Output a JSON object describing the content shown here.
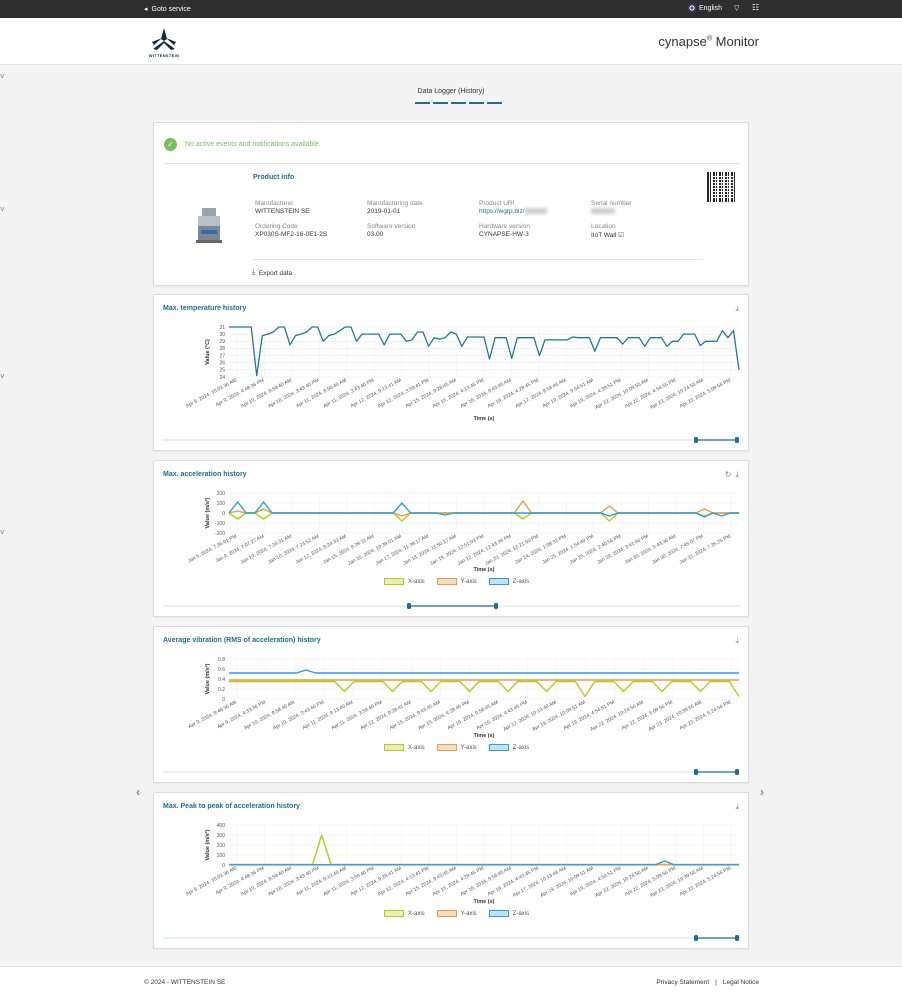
{
  "topbar": {
    "goto_service": "Goto service",
    "language": "English"
  },
  "header": {
    "brand": "WITTENSTEIN",
    "app_title": "cynapse",
    "app_title_suffix": "Monitor",
    "registered": "®"
  },
  "page": {
    "title": "Data Logger (History)"
  },
  "notification": {
    "text": "No active events and notifications available."
  },
  "product": {
    "section_title": "Product info",
    "manufacturer_label": "Manufacturer",
    "manufacturer": "WITTENSTEIN SE",
    "manufacturing_date_label": "Manufacturing date",
    "manufacturing_date": "2019-01-01",
    "product_uri_label": "Product URI",
    "product_uri": "https://wgrp.biz/",
    "serial_number_label": "Serial number",
    "ordering_code_label": "Ordering Code",
    "ordering_code": "XP030S-MF2-16-0E1-2S",
    "software_version_label": "Software version",
    "software_version": "03.00",
    "hardware_version_label": "Hardware version",
    "hardware_version": "CYNAPSE-HW-3",
    "location_label": "Location",
    "location": "IIoT Wall",
    "export_label": "Export data"
  },
  "legend": {
    "x": "X-axis",
    "y": "Y-axis",
    "z": "Z-axis"
  },
  "colors": {
    "accent": "#1f6e8c",
    "x_axis": "#b5cc18",
    "y_axis": "#e0a04a",
    "z_axis": "#2d9fd4",
    "temp": "#1f7a96"
  },
  "chart_data": [
    {
      "type": "line",
      "title": "Max. temperature history",
      "ylabel": "Value (°C)",
      "xlabel": "Time (s)",
      "ylim": [
        24,
        31
      ],
      "yticks": [
        24,
        25,
        26,
        27,
        28,
        29,
        30,
        31
      ],
      "xticklabels": [
        "Apr 9, 2024, 10:03:36 AM",
        "Apr 9, 2024, 4:48:36 PM",
        "Apr 10, 2024, 8:58:40 AM",
        "Apr 10, 2024, 3:43:40 PM",
        "Apr 11, 2024, 8:58:40 AM",
        "Apr 11, 2024, 3:43:40 PM",
        "Apr 12, 2024, 9:13:41 AM",
        "Apr 12, 2024, 3:58:41 PM",
        "Apr 15, 2024, 9:28:45 AM",
        "Apr 15, 2024, 4:13:45 PM",
        "Apr 16, 2024, 9:43:45 AM",
        "Apr 16, 2024, 4:28:45 PM",
        "Apr 17, 2024, 9:58:46 AM",
        "Apr 19, 2024, 9:54:51 AM",
        "Apr 19, 2024, 4:39:51 PM",
        "Apr 22, 2024, 10:09:55 AM",
        "Apr 22, 2024, 4:54:55 PM",
        "Apr 23, 2024, 10:24:56 AM",
        "Apr 23, 2024, 5:09:56 PM"
      ],
      "series": [
        {
          "values": [
            31,
            31,
            31,
            31,
            31,
            24.2,
            29.8,
            30,
            30.3,
            31,
            31,
            28.5,
            29.8,
            30,
            30.3,
            31,
            31,
            29,
            29.8,
            30,
            30.5,
            31,
            31,
            29,
            30,
            30,
            30,
            30,
            28.5,
            30,
            30,
            30,
            29,
            29.2,
            30.3,
            30.3,
            28.3,
            29.5,
            29.3,
            29.5,
            30.3,
            30,
            28.3,
            29.6,
            29.6,
            29.6,
            29.6,
            26.5,
            29.5,
            29.5,
            29.5,
            26.6,
            29.5,
            29.5,
            29.5,
            29.5,
            27,
            29.2,
            29.2,
            29.2,
            29.2,
            29.2,
            29.6,
            29.5,
            29.5,
            29.5,
            27.6,
            29.5,
            29.5,
            29.5,
            29.5,
            28.6,
            29.5,
            29.5,
            29.5,
            28.3,
            29.5,
            29.5,
            29.5,
            28.3,
            29,
            29,
            30,
            30,
            30,
            28.4,
            29,
            29,
            29,
            30.5,
            29.5,
            30.5,
            25
          ]
        }
      ]
    },
    {
      "type": "line",
      "title": "Max. acceleration history",
      "ylabel": "Value (m/s²)",
      "xlabel": "Time (s)",
      "ylim": [
        -200,
        200
      ],
      "yticks": [
        -200,
        -100,
        0,
        100,
        200
      ],
      "xticklabels": [
        "Jan 5, 2024, 7:36:01 PM",
        "Jan 9, 2024, 7:07:27 AM",
        "Jan 10, 2024, 7:24:31 AM",
        "Jan 10, 2024, 7:23:52 AM",
        "Jan 12, 2024, 8:24:33 AM",
        "Jan 15, 2024, 9:39:31 AM",
        "Jan 16, 2024, 10:39:01 AM",
        "Jan 17, 2024, 11:39:17 AM",
        "Jan 18, 2024, 11:50:17 AM",
        "Jan 19, 2024, 12:51:03 PM",
        "Jan 22, 2024, 12:43:39 PM",
        "Jan 23, 2024, 12:21:50 PM",
        "Jan 24, 2024, 1:08:31 PM",
        "Jan 25, 2024, 1:54:40 PM",
        "Jan 26, 2024, 2:40:56 PM",
        "Jan 29, 2024, 3:41:46 PM",
        "Jan 30, 2024, 5:43:36 AM",
        "Jan 30, 2024, 7:45:07 PM",
        "Jan 31, 2024, 7:35:25 PM"
      ],
      "series": [
        {
          "name": "X-axis",
          "values": [
            0,
            -60,
            0,
            0,
            -60,
            0,
            0,
            0,
            0,
            0,
            0,
            0,
            0,
            0,
            0,
            0,
            0,
            0,
            0,
            0,
            -80,
            0,
            0,
            0,
            0,
            0,
            0,
            0,
            0,
            0,
            0,
            0,
            0,
            0,
            -60,
            0,
            0,
            0,
            0,
            0,
            0,
            0,
            0,
            0,
            -80,
            0,
            0,
            0,
            0,
            0,
            0,
            0,
            0,
            0,
            0,
            -30,
            0,
            0,
            0,
            0
          ]
        },
        {
          "name": "Y-axis",
          "values": [
            0,
            20,
            0,
            0,
            40,
            0,
            0,
            0,
            0,
            0,
            0,
            0,
            0,
            0,
            0,
            0,
            0,
            0,
            0,
            0,
            -30,
            0,
            0,
            0,
            0,
            0,
            0,
            0,
            0,
            0,
            0,
            0,
            0,
            0,
            120,
            0,
            0,
            0,
            0,
            0,
            0,
            0,
            0,
            0,
            70,
            0,
            0,
            0,
            0,
            0,
            0,
            0,
            0,
            0,
            0,
            40,
            0,
            0,
            0,
            0
          ]
        },
        {
          "name": "Z-axis",
          "values": [
            0,
            110,
            0,
            0,
            110,
            0,
            0,
            0,
            0,
            0,
            0,
            0,
            0,
            0,
            0,
            0,
            0,
            0,
            0,
            0,
            100,
            0,
            0,
            0,
            0,
            -20,
            0,
            0,
            0,
            0,
            0,
            0,
            0,
            0,
            0,
            0,
            0,
            0,
            0,
            0,
            0,
            0,
            0,
            0,
            -30,
            0,
            0,
            0,
            0,
            0,
            0,
            0,
            0,
            0,
            0,
            -40,
            0,
            -30,
            0,
            0
          ]
        }
      ]
    },
    {
      "type": "line",
      "title": "Average vibration (RMS of acceleration) history",
      "ylabel": "Value (m/s²)",
      "xlabel": "Time (s)",
      "ylim": [
        0,
        0.8
      ],
      "yticks": [
        0,
        0.2,
        0.4,
        0.6,
        0.8
      ],
      "xticklabels": [
        "Apr 9, 2024, 9:48:36 AM",
        "Apr 9, 2024, 4:33:36 PM",
        "Apr 10, 2024, 8:58:40 AM",
        "Apr 10, 2024, 3:43:40 PM",
        "Apr 11, 2024, 9:13:40 AM",
        "Apr 11, 2024, 3:58:40 PM",
        "Apr 12, 2024, 9:28:41 AM",
        "Apr 15, 2024, 9:43:45 AM",
        "Apr 15, 2024, 4:28:45 PM",
        "Apr 16, 2024, 9:58:45 AM",
        "Apr 16, 2024, 4:43:45 PM",
        "Apr 17, 2024, 10:13:48 AM",
        "Apr 19, 2024, 10:09:51 AM",
        "Apr 19, 2024, 4:54:51 PM",
        "Apr 22, 2024, 10:24:56 AM",
        "Apr 22, 2024, 5:09:56 PM",
        "Apr 23, 2024, 10:39:56 AM",
        "Apr 23, 2024, 5:24:56 PM"
      ],
      "series": [
        {
          "name": "X-axis",
          "values": [
            0.35,
            0.35,
            0.35,
            0.35,
            0.35,
            0.35,
            0.35,
            0.35,
            0.35,
            0.35,
            0.35,
            0.35,
            0.15,
            0.35,
            0.35,
            0.35,
            0.35,
            0.15,
            0.35,
            0.35,
            0.35,
            0.15,
            0.35,
            0.35,
            0.35,
            0.15,
            0.35,
            0.35,
            0.35,
            0.15,
            0.35,
            0.35,
            0.35,
            0.15,
            0.35,
            0.35,
            0.35,
            0.05,
            0.35,
            0.35,
            0.35,
            0.15,
            0.35,
            0.35,
            0.35,
            0.15,
            0.35,
            0.35,
            0.35,
            0.15,
            0.35,
            0.35,
            0.35,
            0.05
          ]
        },
        {
          "name": "Y-axis",
          "values": [
            0.38,
            0.38,
            0.38,
            0.38,
            0.38,
            0.38,
            0.38,
            0.38,
            0.38,
            0.38,
            0.38,
            0.38,
            0.38,
            0.38,
            0.38,
            0.38,
            0.38,
            0.38,
            0.38,
            0.38,
            0.38,
            0.38,
            0.38,
            0.38,
            0.38,
            0.38,
            0.38,
            0.38,
            0.38,
            0.38,
            0.38,
            0.38,
            0.38,
            0.38,
            0.38,
            0.38,
            0.38,
            0.38,
            0.38,
            0.38,
            0.38,
            0.38,
            0.38,
            0.38,
            0.38,
            0.38,
            0.38,
            0.38,
            0.38,
            0.38,
            0.38,
            0.38,
            0.38,
            0.38
          ]
        },
        {
          "name": "Z-axis",
          "values": [
            0.52,
            0.52,
            0.52,
            0.52,
            0.52,
            0.52,
            0.52,
            0.52,
            0.58,
            0.52,
            0.52,
            0.52,
            0.52,
            0.52,
            0.52,
            0.52,
            0.52,
            0.52,
            0.52,
            0.52,
            0.52,
            0.52,
            0.52,
            0.52,
            0.52,
            0.52,
            0.52,
            0.52,
            0.52,
            0.52,
            0.52,
            0.52,
            0.52,
            0.52,
            0.52,
            0.52,
            0.52,
            0.52,
            0.52,
            0.52,
            0.52,
            0.52,
            0.52,
            0.52,
            0.52,
            0.52,
            0.52,
            0.52,
            0.52,
            0.52,
            0.52,
            0.52,
            0.52,
            0.52
          ]
        }
      ]
    },
    {
      "type": "line",
      "title": "Max. Peak to peak of acceleration history",
      "ylabel": "Value (m/s²)",
      "xlabel": "Time (s)",
      "ylim": [
        0,
        400
      ],
      "yticks": [
        0,
        100,
        200,
        300,
        400
      ],
      "xticklabels": [
        "Apr 9, 2024, 10:03:36 AM",
        "Apr 9, 2024, 4:48:36 PM",
        "Apr 10, 2024, 8:58:40 AM",
        "Apr 10, 2024, 3:43:40 PM",
        "Apr 11, 2024, 9:13:40 AM",
        "Apr 11, 2024, 3:58:40 PM",
        "Apr 12, 2024, 9:28:41 AM",
        "Apr 12, 2024, 4:13:41 PM",
        "Apr 15, 2024, 9:43:45 AM",
        "Apr 15, 2024, 4:28:45 PM",
        "Apr 16, 2024, 9:58:45 AM",
        "Apr 16, 2024, 4:43:45 PM",
        "Apr 17, 2024, 10:13:48 AM",
        "Apr 19, 2024, 10:09:51 AM",
        "Apr 19, 2024, 4:54:51 PM",
        "Apr 22, 2024, 10:24:56 AM",
        "Apr 22, 2024, 5:09:56 PM",
        "Apr 23, 2024, 10:39:56 AM",
        "Apr 23, 2024, 5:24:56 PM"
      ],
      "series": [
        {
          "name": "X-axis",
          "values": [
            5,
            5,
            5,
            5,
            5,
            5,
            5,
            5,
            5,
            5,
            300,
            5,
            5,
            5,
            5,
            5,
            5,
            5,
            5,
            5,
            5,
            5,
            5,
            5,
            5,
            5,
            5,
            5,
            5,
            5,
            5,
            5,
            5,
            5,
            5,
            5,
            5,
            5,
            5,
            5,
            5,
            5,
            5,
            5,
            5,
            5,
            5,
            5,
            5,
            5,
            5,
            5,
            5,
            5,
            5,
            5
          ]
        },
        {
          "name": "Y-axis",
          "values": [
            3,
            3,
            3,
            3,
            3,
            3,
            3,
            3,
            3,
            3,
            3,
            3,
            3,
            3,
            3,
            3,
            3,
            3,
            3,
            3,
            3,
            3,
            3,
            3,
            3,
            3,
            3,
            3,
            3,
            3,
            3,
            3,
            3,
            3,
            3,
            3,
            3,
            3,
            3,
            3,
            3,
            3,
            3,
            3,
            3,
            3,
            3,
            3,
            3,
            3,
            3,
            3,
            3,
            3,
            3,
            3
          ]
        },
        {
          "name": "Z-axis",
          "values": [
            2,
            2,
            2,
            2,
            2,
            2,
            2,
            2,
            2,
            2,
            2,
            2,
            2,
            2,
            2,
            2,
            2,
            2,
            2,
            2,
            2,
            2,
            2,
            2,
            2,
            2,
            2,
            2,
            2,
            2,
            2,
            2,
            2,
            2,
            2,
            2,
            2,
            2,
            2,
            2,
            2,
            2,
            2,
            2,
            2,
            2,
            2,
            40,
            2,
            2,
            2,
            2,
            2,
            2,
            2,
            2
          ]
        }
      ]
    }
  ],
  "footer": {
    "copyright": "© 2024 - WITTENSTEIN SE",
    "privacy": "Privacy Statement",
    "separator": "|",
    "legal": "Legal Notice"
  }
}
